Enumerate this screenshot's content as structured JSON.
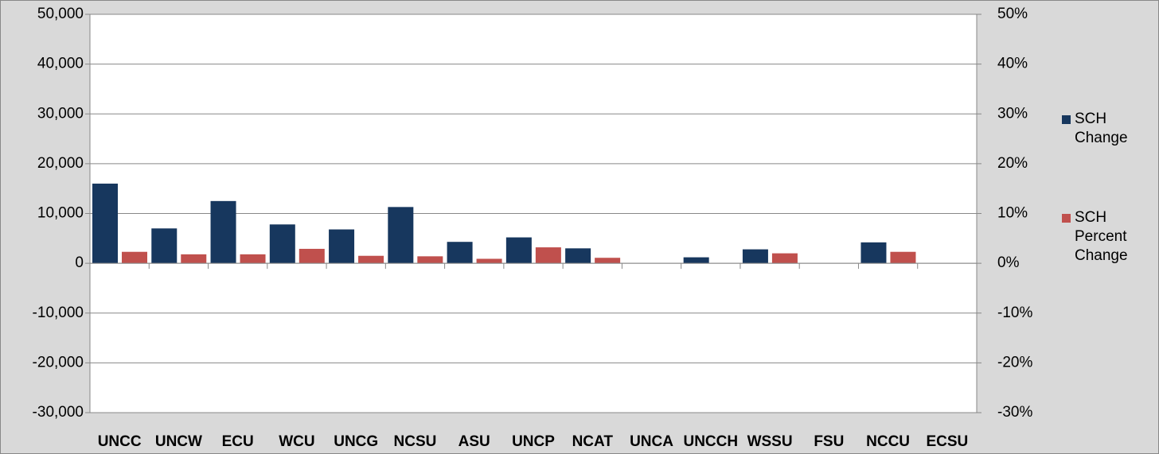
{
  "chart_data": {
    "type": "bar",
    "categories": [
      "UNCC",
      "UNCW",
      "ECU",
      "WCU",
      "UNCG",
      "NCSU",
      "ASU",
      "UNCP",
      "NCAT",
      "UNCA",
      "UNCCH",
      "WSSU",
      "FSU",
      "NCCU",
      "ECSU"
    ],
    "series": [
      {
        "name": "SCH Change",
        "color": "#17375e",
        "values": [
          16000,
          7000,
          12500,
          7800,
          6800,
          11300,
          4300,
          5200,
          3000,
          0,
          1200,
          2800,
          0,
          4200,
          0
        ]
      },
      {
        "name": "SCH Percent Change",
        "color": "#c0504d",
        "axis": "y2",
        "values": [
          2.3,
          1.8,
          1.8,
          2.9,
          1.5,
          1.4,
          0.9,
          3.2,
          1.1,
          0,
          0,
          2.0,
          0,
          2.3,
          0
        ]
      }
    ],
    "ylim": [
      -30000,
      50000
    ],
    "yticks": [
      {
        "value": -30000,
        "label": "-30,000"
      },
      {
        "value": -20000,
        "label": "-20,000"
      },
      {
        "value": -10000,
        "label": "-10,000"
      },
      0,
      {
        "value": 10000,
        "label": "10,000"
      },
      {
        "value": 20000,
        "label": "20,000"
      },
      {
        "value": 30000,
        "label": "30,000"
      },
      {
        "value": 40000,
        "label": "40,000"
      },
      {
        "value": 50000,
        "label": "50,000"
      }
    ],
    "y2lim": [
      -30,
      50
    ],
    "y2ticks": [
      {
        "value": -30,
        "label": "-30%"
      },
      {
        "value": -20,
        "label": "-20%"
      },
      {
        "value": -10,
        "label": "-10%"
      },
      {
        "value": 0,
        "label": "0%"
      },
      {
        "value": 10,
        "label": "10%"
      },
      {
        "value": 20,
        "label": "20%"
      },
      {
        "value": 30,
        "label": "30%"
      },
      {
        "value": 40,
        "label": "40%"
      },
      {
        "value": 50,
        "label": "50%"
      }
    ],
    "grid": true,
    "legend": "right"
  }
}
